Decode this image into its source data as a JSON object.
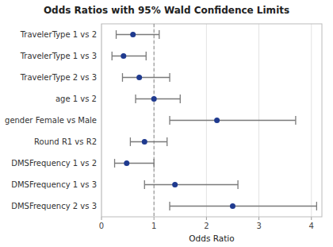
{
  "chart_data": {
    "type": "forest",
    "title": "Odds Ratios with 95% Wald Confidence Limits",
    "xlabel": "Odds Ratio",
    "orientation": "horizontal",
    "categories": [
      "TravelerType 1 vs 2",
      "TravelerType 1 vs 3",
      "TravelerType 2 vs 3",
      "age 1 vs 2",
      "gender Female vs Male",
      "Round R1 vs R2",
      "DMSFrequency 1 vs 2",
      "DMSFrequency 1 vs 3",
      "DMSFrequency 2 vs 3"
    ],
    "values": [
      0.6,
      0.42,
      0.72,
      1.0,
      2.2,
      0.82,
      0.48,
      1.4,
      2.5
    ],
    "ci_low": [
      0.28,
      0.2,
      0.4,
      0.65,
      1.3,
      0.55,
      0.25,
      0.82,
      1.3
    ],
    "ci_high": [
      1.1,
      0.85,
      1.3,
      1.5,
      3.7,
      1.25,
      1.0,
      2.6,
      4.1
    ],
    "reference_line": 1,
    "color": "#1F3A8F",
    "xlim": [
      0,
      4.2
    ],
    "xticks": [
      0,
      1,
      2,
      3,
      4
    ],
    "grid": true
  }
}
